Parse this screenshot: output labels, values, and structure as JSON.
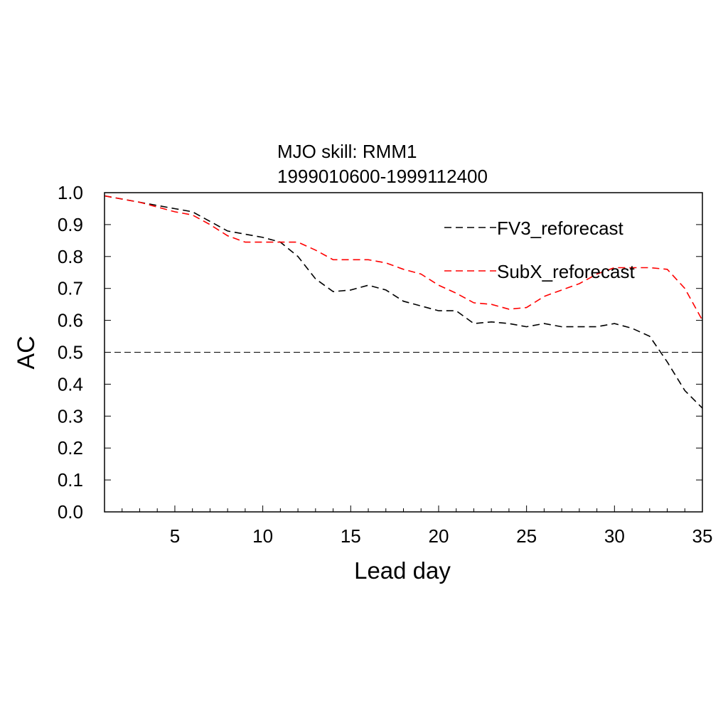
{
  "chart_data": {
    "type": "line",
    "title": "MJO skill: RMM1",
    "subtitle": "1999010600-1999112400",
    "xlabel": "Lead day",
    "ylabel": "AC",
    "xlim": [
      1,
      35
    ],
    "ylim": [
      0.0,
      1.0
    ],
    "x_ticks": [
      "5",
      "10",
      "15",
      "20",
      "25",
      "30",
      "35"
    ],
    "y_ticks": [
      "0.0",
      "0.1",
      "0.2",
      "0.3",
      "0.4",
      "0.5",
      "0.6",
      "0.7",
      "0.8",
      "0.9",
      "1.0"
    ],
    "reference_line": 0.5,
    "grid": false,
    "legend_position": "top-right",
    "x": [
      1,
      2,
      3,
      4,
      5,
      6,
      7,
      8,
      9,
      10,
      11,
      12,
      13,
      14,
      15,
      16,
      17,
      18,
      19,
      20,
      21,
      22,
      23,
      24,
      25,
      26,
      27,
      28,
      29,
      30,
      31,
      32,
      33,
      34,
      35
    ],
    "series": [
      {
        "name": "FV3_reforecast",
        "color": "#000000",
        "values": [
          0.99,
          0.98,
          0.97,
          0.96,
          0.95,
          0.94,
          0.91,
          0.88,
          0.87,
          0.86,
          0.845,
          0.8,
          0.73,
          0.69,
          0.695,
          0.71,
          0.695,
          0.66,
          0.645,
          0.63,
          0.63,
          0.59,
          0.595,
          0.59,
          0.58,
          0.59,
          0.58,
          0.58,
          0.58,
          0.59,
          0.575,
          0.55,
          0.47,
          0.38,
          0.325
        ]
      },
      {
        "name": "SubX_reforecast",
        "color": "#ff0000",
        "values": [
          0.99,
          0.98,
          0.97,
          0.955,
          0.94,
          0.93,
          0.9,
          0.865,
          0.845,
          0.845,
          0.845,
          0.845,
          0.82,
          0.79,
          0.79,
          0.79,
          0.78,
          0.76,
          0.745,
          0.71,
          0.685,
          0.655,
          0.65,
          0.635,
          0.64,
          0.675,
          0.695,
          0.715,
          0.745,
          0.765,
          0.765,
          0.765,
          0.76,
          0.7,
          0.6
        ]
      }
    ]
  }
}
